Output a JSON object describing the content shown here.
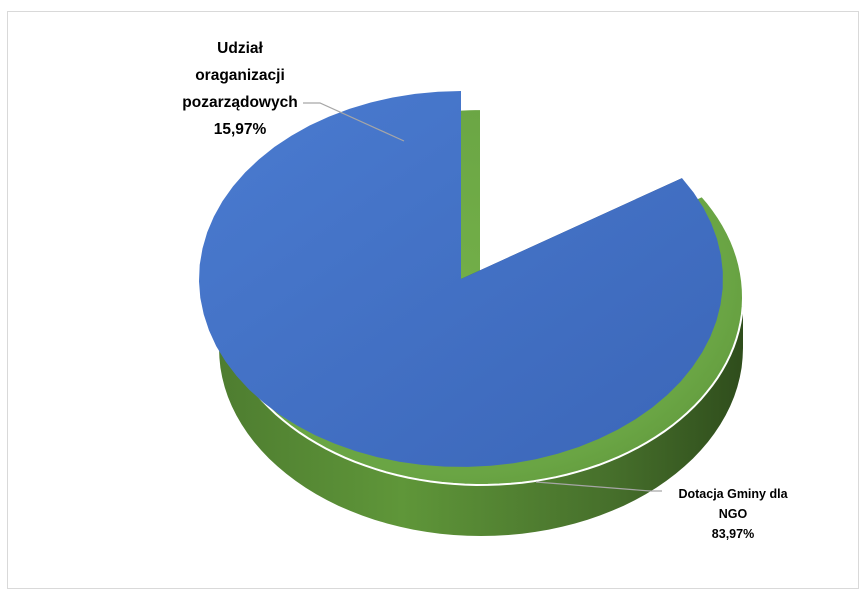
{
  "chart_data": {
    "type": "pie",
    "style": "3d-exploded",
    "slices": [
      {
        "label_lines": [
          "Udział",
          "oraganizacji",
          "pozarządowych"
        ],
        "value": 15.97,
        "value_label": "15,97%",
        "color": "#4472c4"
      },
      {
        "label_lines": [
          "Dotacja Gminy dla",
          "NGO"
        ],
        "value": 83.97,
        "value_label": "83,97%",
        "color": "#70ad47"
      }
    ],
    "legend": "none"
  }
}
